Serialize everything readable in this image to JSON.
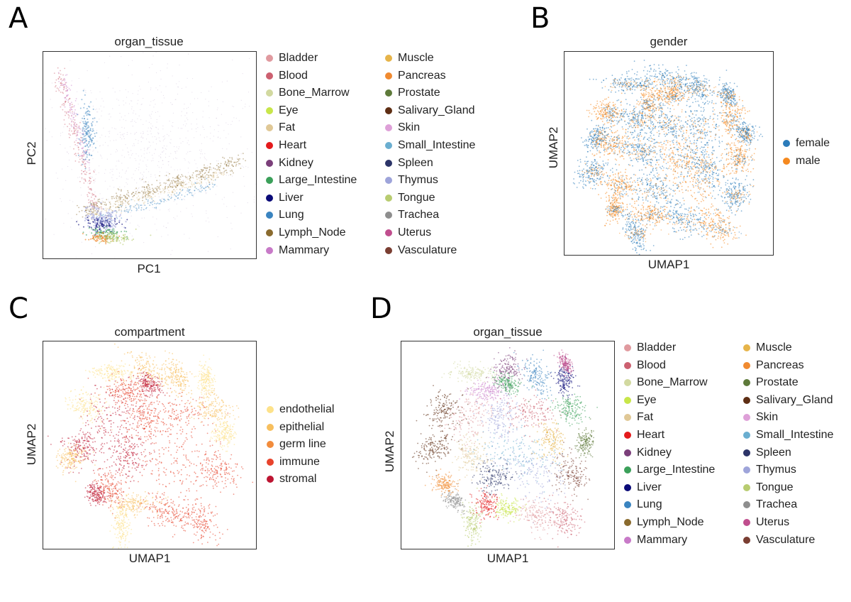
{
  "panels": {
    "A": {
      "letter": "A",
      "title": "organ_tissue",
      "xlabel": "PC1",
      "ylabel": "PC2"
    },
    "B": {
      "letter": "B",
      "title": "gender",
      "xlabel": "UMAP1",
      "ylabel": "UMAP2"
    },
    "C": {
      "letter": "C",
      "title": "compartment",
      "xlabel": "UMAP1",
      "ylabel": "UMAP2"
    },
    "D": {
      "letter": "D",
      "title": "organ_tissue",
      "xlabel": "UMAP1",
      "ylabel": "UMAP2"
    }
  },
  "chart_data": [
    {
      "type": "scatter",
      "title": "organ_tissue",
      "xlabel": "PC1",
      "ylabel": "PC2",
      "axes_ticks": false,
      "legend_position": "right, two columns",
      "legend": [
        {
          "name": "Bladder",
          "color": "#e09a9f"
        },
        {
          "name": "Blood",
          "color": "#cc6070"
        },
        {
          "name": "Bone_Marrow",
          "color": "#d2d9a0"
        },
        {
          "name": "Eye",
          "color": "#c8e64a"
        },
        {
          "name": "Fat",
          "color": "#e0c896"
        },
        {
          "name": "Heart",
          "color": "#e41a1c"
        },
        {
          "name": "Kidney",
          "color": "#7b3f7a"
        },
        {
          "name": "Large_Intestine",
          "color": "#3ba05a"
        },
        {
          "name": "Liver",
          "color": "#0a0a78"
        },
        {
          "name": "Lung",
          "color": "#3a84c0"
        },
        {
          "name": "Lymph_Node",
          "color": "#8a6b2e"
        },
        {
          "name": "Mammary",
          "color": "#c87ac8"
        },
        {
          "name": "Muscle",
          "color": "#e6b44a"
        },
        {
          "name": "Pancreas",
          "color": "#f08a30"
        },
        {
          "name": "Prostate",
          "color": "#5e7a3a"
        },
        {
          "name": "Salivary_Gland",
          "color": "#5e2e14"
        },
        {
          "name": "Skin",
          "color": "#dea0d8"
        },
        {
          "name": "Small_Intestine",
          "color": "#6aaed0"
        },
        {
          "name": "Spleen",
          "color": "#2c3468"
        },
        {
          "name": "Thymus",
          "color": "#9ea4da"
        },
        {
          "name": "Tongue",
          "color": "#b8cc70"
        },
        {
          "name": "Trachea",
          "color": "#8e8e8e"
        },
        {
          "name": "Uterus",
          "color": "#c04e8e"
        },
        {
          "name": "Vasculature",
          "color": "#7a3e32"
        }
      ]
    },
    {
      "type": "scatter",
      "title": "gender",
      "xlabel": "UMAP1",
      "ylabel": "UMAP2",
      "axes_ticks": false,
      "legend_position": "right",
      "legend": [
        {
          "name": "female",
          "color": "#2b7bba"
        },
        {
          "name": "male",
          "color": "#f5891f"
        }
      ]
    },
    {
      "type": "scatter",
      "title": "compartment",
      "xlabel": "UMAP1",
      "ylabel": "UMAP2",
      "axes_ticks": false,
      "legend_position": "right",
      "legend": [
        {
          "name": "endothelial",
          "color": "#fde28a"
        },
        {
          "name": "epithelial",
          "color": "#f7bf5e"
        },
        {
          "name": "germ line",
          "color": "#f28c3c"
        },
        {
          "name": "immune",
          "color": "#e8432c"
        },
        {
          "name": "stromal",
          "color": "#bd1532"
        }
      ]
    },
    {
      "type": "scatter",
      "title": "organ_tissue",
      "xlabel": "UMAP1",
      "ylabel": "UMAP2",
      "axes_ticks": false,
      "legend_position": "right, two columns",
      "legend": [
        {
          "name": "Bladder",
          "color": "#e09a9f"
        },
        {
          "name": "Blood",
          "color": "#cc6070"
        },
        {
          "name": "Bone_Marrow",
          "color": "#d2d9a0"
        },
        {
          "name": "Eye",
          "color": "#c8e64a"
        },
        {
          "name": "Fat",
          "color": "#e0c896"
        },
        {
          "name": "Heart",
          "color": "#e41a1c"
        },
        {
          "name": "Kidney",
          "color": "#7b3f7a"
        },
        {
          "name": "Large_Intestine",
          "color": "#3ba05a"
        },
        {
          "name": "Liver",
          "color": "#0a0a78"
        },
        {
          "name": "Lung",
          "color": "#3a84c0"
        },
        {
          "name": "Lymph_Node",
          "color": "#8a6b2e"
        },
        {
          "name": "Mammary",
          "color": "#c87ac8"
        },
        {
          "name": "Muscle",
          "color": "#e6b44a"
        },
        {
          "name": "Pancreas",
          "color": "#f08a30"
        },
        {
          "name": "Prostate",
          "color": "#5e7a3a"
        },
        {
          "name": "Salivary_Gland",
          "color": "#5e2e14"
        },
        {
          "name": "Skin",
          "color": "#dea0d8"
        },
        {
          "name": "Small_Intestine",
          "color": "#6aaed0"
        },
        {
          "name": "Spleen",
          "color": "#2c3468"
        },
        {
          "name": "Thymus",
          "color": "#9ea4da"
        },
        {
          "name": "Tongue",
          "color": "#b8cc70"
        },
        {
          "name": "Trachea",
          "color": "#8e8e8e"
        },
        {
          "name": "Uterus",
          "color": "#c04e8e"
        },
        {
          "name": "Vasculature",
          "color": "#7a3e32"
        }
      ]
    }
  ]
}
